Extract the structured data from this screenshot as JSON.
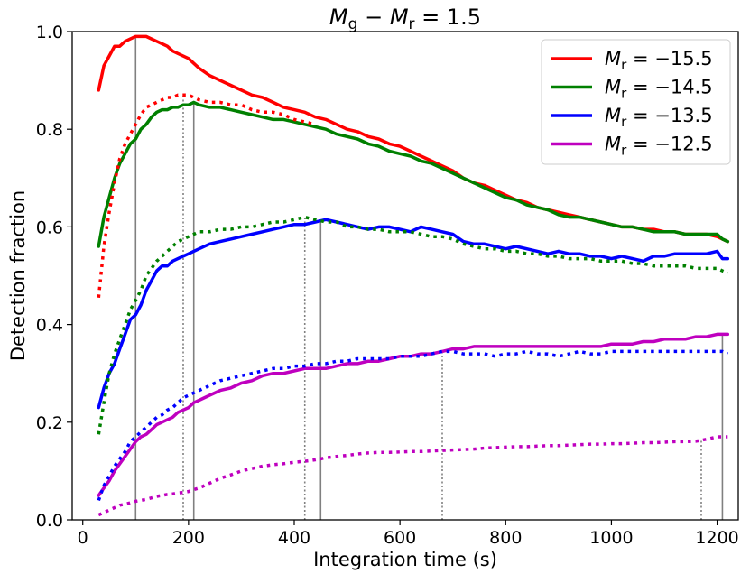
{
  "chart_data": {
    "type": "line",
    "title": "M_g − M_r = 1.5",
    "xlabel": "Integration time (s)",
    "ylabel": "Detection fraction",
    "xlim": [
      -20,
      1240
    ],
    "ylim": [
      0.0,
      1.0
    ],
    "xticks": [
      0,
      200,
      400,
      600,
      800,
      1000,
      1200
    ],
    "yticks": [
      0.0,
      0.2,
      0.4,
      0.6,
      0.8,
      1.0
    ],
    "legend_position": "top-right",
    "grid": false,
    "series": [
      {
        "name": "M_r = −15.5",
        "color": "#ff0000",
        "style": "solid",
        "x": [
          30,
          40,
          50,
          60,
          70,
          80,
          90,
          100,
          110,
          120,
          130,
          140,
          150,
          160,
          170,
          180,
          190,
          200,
          210,
          220,
          240,
          260,
          280,
          300,
          320,
          340,
          360,
          380,
          400,
          420,
          440,
          460,
          480,
          500,
          520,
          540,
          560,
          580,
          600,
          620,
          640,
          660,
          680,
          700,
          720,
          740,
          760,
          780,
          800,
          820,
          840,
          860,
          880,
          900,
          920,
          940,
          960,
          980,
          1000,
          1020,
          1040,
          1060,
          1080,
          1100,
          1120,
          1140,
          1160,
          1180,
          1200,
          1210,
          1220
        ],
        "y": [
          0.88,
          0.93,
          0.95,
          0.97,
          0.97,
          0.98,
          0.985,
          0.99,
          0.99,
          0.99,
          0.985,
          0.98,
          0.975,
          0.97,
          0.96,
          0.955,
          0.95,
          0.945,
          0.935,
          0.925,
          0.91,
          0.9,
          0.89,
          0.88,
          0.87,
          0.865,
          0.855,
          0.845,
          0.84,
          0.835,
          0.825,
          0.82,
          0.81,
          0.8,
          0.795,
          0.785,
          0.78,
          0.77,
          0.765,
          0.755,
          0.745,
          0.735,
          0.725,
          0.715,
          0.7,
          0.69,
          0.685,
          0.675,
          0.665,
          0.655,
          0.65,
          0.64,
          0.635,
          0.63,
          0.625,
          0.62,
          0.615,
          0.61,
          0.605,
          0.6,
          0.6,
          0.595,
          0.595,
          0.59,
          0.59,
          0.585,
          0.585,
          0.585,
          0.58,
          0.575,
          0.57
        ]
      },
      {
        "name": "M_r = −14.5",
        "color": "#008000",
        "style": "solid",
        "x": [
          30,
          40,
          50,
          60,
          70,
          80,
          90,
          100,
          110,
          120,
          130,
          140,
          150,
          160,
          170,
          180,
          190,
          200,
          210,
          220,
          240,
          260,
          280,
          300,
          320,
          340,
          360,
          380,
          400,
          420,
          440,
          460,
          480,
          500,
          520,
          540,
          560,
          580,
          600,
          620,
          640,
          660,
          680,
          700,
          720,
          740,
          760,
          780,
          800,
          820,
          840,
          860,
          880,
          900,
          920,
          940,
          960,
          980,
          1000,
          1020,
          1040,
          1060,
          1080,
          1100,
          1120,
          1140,
          1160,
          1180,
          1200,
          1210,
          1220
        ],
        "y": [
          0.56,
          0.62,
          0.66,
          0.7,
          0.73,
          0.75,
          0.77,
          0.78,
          0.8,
          0.81,
          0.825,
          0.835,
          0.84,
          0.84,
          0.845,
          0.845,
          0.85,
          0.85,
          0.855,
          0.85,
          0.845,
          0.845,
          0.84,
          0.835,
          0.83,
          0.825,
          0.82,
          0.82,
          0.815,
          0.81,
          0.805,
          0.8,
          0.79,
          0.785,
          0.78,
          0.77,
          0.765,
          0.755,
          0.75,
          0.745,
          0.735,
          0.73,
          0.72,
          0.71,
          0.7,
          0.69,
          0.68,
          0.67,
          0.66,
          0.655,
          0.645,
          0.64,
          0.635,
          0.625,
          0.62,
          0.62,
          0.615,
          0.61,
          0.605,
          0.6,
          0.6,
          0.595,
          0.59,
          0.59,
          0.59,
          0.585,
          0.585,
          0.585,
          0.585,
          0.575,
          0.57
        ]
      },
      {
        "name": "M_r = −13.5",
        "color": "#0000ff",
        "style": "solid",
        "x": [
          30,
          40,
          50,
          60,
          70,
          80,
          90,
          100,
          110,
          120,
          130,
          140,
          150,
          160,
          170,
          180,
          190,
          200,
          210,
          220,
          240,
          260,
          280,
          300,
          320,
          340,
          360,
          380,
          400,
          420,
          440,
          460,
          480,
          500,
          520,
          540,
          560,
          580,
          600,
          620,
          640,
          660,
          680,
          700,
          720,
          740,
          760,
          780,
          800,
          820,
          840,
          860,
          880,
          900,
          920,
          940,
          960,
          980,
          1000,
          1020,
          1040,
          1060,
          1080,
          1100,
          1120,
          1140,
          1160,
          1180,
          1200,
          1210,
          1220
        ],
        "y": [
          0.23,
          0.27,
          0.3,
          0.32,
          0.35,
          0.38,
          0.41,
          0.42,
          0.44,
          0.47,
          0.49,
          0.51,
          0.52,
          0.52,
          0.53,
          0.535,
          0.54,
          0.545,
          0.55,
          0.555,
          0.565,
          0.57,
          0.575,
          0.58,
          0.585,
          0.59,
          0.595,
          0.6,
          0.605,
          0.605,
          0.61,
          0.615,
          0.61,
          0.605,
          0.6,
          0.595,
          0.6,
          0.6,
          0.595,
          0.59,
          0.6,
          0.595,
          0.59,
          0.585,
          0.57,
          0.565,
          0.565,
          0.56,
          0.555,
          0.56,
          0.555,
          0.55,
          0.545,
          0.55,
          0.545,
          0.545,
          0.54,
          0.54,
          0.535,
          0.54,
          0.535,
          0.53,
          0.54,
          0.54,
          0.545,
          0.545,
          0.545,
          0.545,
          0.55,
          0.535,
          0.535
        ]
      },
      {
        "name": "M_r = −12.5",
        "color": "#bf00bf",
        "style": "solid",
        "x": [
          30,
          40,
          50,
          60,
          70,
          80,
          90,
          100,
          110,
          120,
          130,
          140,
          150,
          160,
          170,
          180,
          190,
          200,
          210,
          220,
          240,
          260,
          280,
          300,
          320,
          340,
          360,
          380,
          400,
          420,
          440,
          460,
          480,
          500,
          520,
          540,
          560,
          580,
          600,
          620,
          640,
          660,
          680,
          700,
          720,
          740,
          760,
          780,
          800,
          820,
          840,
          860,
          880,
          900,
          920,
          940,
          960,
          980,
          1000,
          1020,
          1040,
          1060,
          1080,
          1100,
          1120,
          1140,
          1160,
          1180,
          1200,
          1210,
          1220
        ],
        "y": [
          0.05,
          0.065,
          0.08,
          0.1,
          0.115,
          0.13,
          0.145,
          0.16,
          0.17,
          0.175,
          0.185,
          0.195,
          0.2,
          0.205,
          0.21,
          0.22,
          0.225,
          0.23,
          0.24,
          0.245,
          0.255,
          0.265,
          0.27,
          0.28,
          0.285,
          0.295,
          0.3,
          0.3,
          0.305,
          0.31,
          0.31,
          0.31,
          0.315,
          0.32,
          0.32,
          0.325,
          0.325,
          0.33,
          0.335,
          0.335,
          0.34,
          0.34,
          0.345,
          0.35,
          0.35,
          0.355,
          0.355,
          0.355,
          0.355,
          0.355,
          0.355,
          0.355,
          0.355,
          0.355,
          0.355,
          0.355,
          0.355,
          0.355,
          0.36,
          0.36,
          0.36,
          0.365,
          0.365,
          0.37,
          0.37,
          0.37,
          0.375,
          0.375,
          0.38,
          0.38,
          0.38
        ]
      },
      {
        "name": "",
        "color": "#ff0000",
        "style": "dotted",
        "x": [
          30,
          40,
          50,
          60,
          70,
          80,
          90,
          100,
          110,
          120,
          130,
          140,
          150,
          160,
          170,
          180,
          190,
          200,
          210,
          220,
          240,
          260,
          280,
          300,
          320,
          340,
          360,
          380,
          400,
          420,
          440
        ],
        "y": [
          0.455,
          0.56,
          0.63,
          0.69,
          0.74,
          0.77,
          0.79,
          0.81,
          0.83,
          0.845,
          0.85,
          0.855,
          0.86,
          0.865,
          0.865,
          0.87,
          0.87,
          0.87,
          0.865,
          0.86,
          0.855,
          0.855,
          0.85,
          0.85,
          0.84,
          0.835,
          0.835,
          0.83,
          0.82,
          0.815,
          0.81
        ]
      },
      {
        "name": "",
        "color": "#008000",
        "style": "dotted",
        "x": [
          30,
          40,
          50,
          60,
          70,
          80,
          90,
          100,
          110,
          120,
          130,
          140,
          150,
          160,
          170,
          180,
          190,
          200,
          210,
          220,
          240,
          260,
          280,
          300,
          320,
          340,
          360,
          380,
          400,
          420,
          440,
          460,
          480,
          500,
          520,
          540,
          560,
          580,
          600,
          620,
          640,
          660,
          680,
          700,
          720,
          740,
          760,
          780,
          800,
          820,
          840,
          860,
          880,
          900,
          920,
          940,
          960,
          980,
          1000,
          1020,
          1040,
          1060,
          1080,
          1100,
          1120,
          1140,
          1160,
          1180,
          1200,
          1210,
          1220
        ],
        "y": [
          0.175,
          0.24,
          0.3,
          0.34,
          0.37,
          0.4,
          0.43,
          0.45,
          0.47,
          0.5,
          0.515,
          0.53,
          0.54,
          0.55,
          0.56,
          0.57,
          0.575,
          0.58,
          0.585,
          0.59,
          0.59,
          0.595,
          0.595,
          0.6,
          0.6,
          0.605,
          0.61,
          0.61,
          0.615,
          0.62,
          0.615,
          0.61,
          0.61,
          0.6,
          0.6,
          0.595,
          0.595,
          0.59,
          0.59,
          0.59,
          0.585,
          0.58,
          0.58,
          0.575,
          0.565,
          0.56,
          0.555,
          0.555,
          0.55,
          0.55,
          0.545,
          0.545,
          0.54,
          0.54,
          0.535,
          0.535,
          0.535,
          0.53,
          0.53,
          0.53,
          0.525,
          0.525,
          0.52,
          0.52,
          0.52,
          0.52,
          0.515,
          0.515,
          0.515,
          0.51,
          0.505
        ]
      },
      {
        "name": "",
        "color": "#0000ff",
        "style": "dotted",
        "x": [
          30,
          40,
          50,
          60,
          70,
          80,
          90,
          100,
          110,
          120,
          130,
          140,
          150,
          160,
          170,
          180,
          190,
          200,
          210,
          220,
          240,
          260,
          280,
          300,
          320,
          340,
          360,
          380,
          400,
          420,
          440,
          460,
          480,
          500,
          520,
          540,
          560,
          580,
          600,
          620,
          640,
          660,
          680,
          700,
          720,
          740,
          760,
          780,
          800,
          820,
          840,
          860,
          880,
          900,
          920,
          940,
          960,
          980,
          1000,
          1020,
          1040,
          1060,
          1080,
          1100,
          1120,
          1140,
          1160,
          1180,
          1200,
          1210,
          1220
        ],
        "y": [
          0.04,
          0.07,
          0.09,
          0.11,
          0.125,
          0.14,
          0.16,
          0.17,
          0.18,
          0.19,
          0.2,
          0.21,
          0.215,
          0.225,
          0.23,
          0.24,
          0.25,
          0.255,
          0.26,
          0.265,
          0.275,
          0.285,
          0.29,
          0.295,
          0.3,
          0.305,
          0.31,
          0.31,
          0.315,
          0.315,
          0.32,
          0.32,
          0.325,
          0.325,
          0.33,
          0.33,
          0.33,
          0.33,
          0.335,
          0.335,
          0.335,
          0.34,
          0.345,
          0.345,
          0.34,
          0.34,
          0.34,
          0.335,
          0.34,
          0.34,
          0.345,
          0.34,
          0.34,
          0.335,
          0.34,
          0.345,
          0.34,
          0.34,
          0.345,
          0.345,
          0.345,
          0.345,
          0.345,
          0.345,
          0.345,
          0.345,
          0.345,
          0.345,
          0.345,
          0.345,
          0.34
        ]
      },
      {
        "name": "",
        "color": "#bf00bf",
        "style": "dotted",
        "x": [
          30,
          40,
          50,
          60,
          70,
          80,
          90,
          100,
          110,
          120,
          130,
          140,
          150,
          160,
          170,
          180,
          190,
          200,
          210,
          220,
          240,
          260,
          280,
          300,
          320,
          340,
          360,
          380,
          400,
          420,
          440,
          460,
          480,
          500,
          520,
          540,
          560,
          580,
          600,
          620,
          640,
          660,
          680,
          700,
          720,
          740,
          760,
          780,
          800,
          820,
          840,
          860,
          880,
          900,
          920,
          940,
          960,
          980,
          1000,
          1020,
          1040,
          1060,
          1080,
          1100,
          1120,
          1140,
          1160,
          1180,
          1200,
          1210,
          1220
        ],
        "y": [
          0.01,
          0.015,
          0.02,
          0.025,
          0.03,
          0.032,
          0.035,
          0.038,
          0.04,
          0.042,
          0.045,
          0.048,
          0.05,
          0.052,
          0.053,
          0.055,
          0.056,
          0.058,
          0.062,
          0.065,
          0.075,
          0.085,
          0.092,
          0.1,
          0.105,
          0.11,
          0.113,
          0.115,
          0.118,
          0.12,
          0.123,
          0.127,
          0.13,
          0.132,
          0.135,
          0.137,
          0.138,
          0.138,
          0.139,
          0.14,
          0.14,
          0.141,
          0.142,
          0.143,
          0.144,
          0.145,
          0.147,
          0.148,
          0.149,
          0.15,
          0.15,
          0.151,
          0.152,
          0.152,
          0.153,
          0.154,
          0.155,
          0.155,
          0.156,
          0.156,
          0.157,
          0.158,
          0.158,
          0.159,
          0.16,
          0.16,
          0.161,
          0.165,
          0.17,
          0.17,
          0.17
        ]
      }
    ],
    "reference_lines": [
      {
        "x": 100,
        "y": 0.99,
        "color": "#808080",
        "style": "solid"
      },
      {
        "x": 210,
        "y": 0.855,
        "color": "#808080",
        "style": "solid"
      },
      {
        "x": 450,
        "y": 0.615,
        "color": "#808080",
        "style": "solid"
      },
      {
        "x": 1210,
        "y": 0.38,
        "color": "#808080",
        "style": "solid"
      },
      {
        "x": 190,
        "y": 0.87,
        "color": "#808080",
        "style": "dotted"
      },
      {
        "x": 420,
        "y": 0.62,
        "color": "#808080",
        "style": "dotted"
      },
      {
        "x": 680,
        "y": 0.345,
        "color": "#808080",
        "style": "dotted"
      },
      {
        "x": 1170,
        "y": 0.165,
        "color": "#808080",
        "style": "dotted"
      }
    ],
    "legend": [
      {
        "sub": "r",
        "value": "−15.5",
        "color": "#ff0000"
      },
      {
        "sub": "r",
        "value": "−14.5",
        "color": "#008000"
      },
      {
        "sub": "r",
        "value": "−13.5",
        "color": "#0000ff"
      },
      {
        "sub": "r",
        "value": "−12.5",
        "color": "#bf00bf"
      }
    ]
  }
}
